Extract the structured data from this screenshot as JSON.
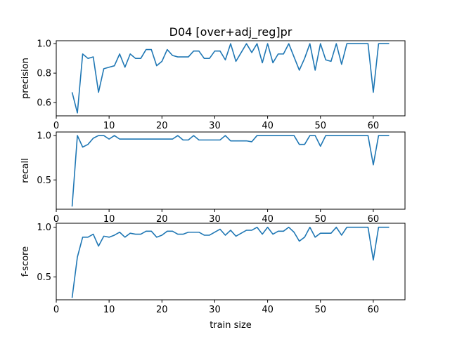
{
  "figure": {
    "title": "D04 [over+adj_reg]pr",
    "xlabel": "train size",
    "line_color": "#1f77b4"
  },
  "chart_data": [
    {
      "type": "line",
      "ylabel": "precision",
      "xlim": [
        0,
        66
      ],
      "ylim": [
        0.51,
        1.02
      ],
      "xticks": [
        0,
        10,
        20,
        30,
        40,
        50,
        60
      ],
      "yticks": [
        0.6,
        0.8,
        1.0
      ],
      "ytick_labels": [
        "0.6",
        "0.8",
        "1.0"
      ],
      "x": [
        3,
        4,
        5,
        6,
        7,
        8,
        9,
        10,
        11,
        12,
        13,
        14,
        15,
        16,
        17,
        18,
        19,
        20,
        21,
        22,
        23,
        24,
        25,
        26,
        27,
        28,
        29,
        30,
        31,
        32,
        33,
        34,
        35,
        36,
        37,
        38,
        39,
        40,
        41,
        42,
        43,
        44,
        45,
        46,
        47,
        48,
        49,
        50,
        51,
        52,
        53,
        54,
        55,
        56,
        57,
        58,
        59,
        60,
        61,
        62,
        63
      ],
      "y": [
        0.67,
        0.53,
        0.93,
        0.9,
        0.91,
        0.67,
        0.83,
        0.84,
        0.85,
        0.93,
        0.84,
        0.93,
        0.9,
        0.9,
        0.96,
        0.96,
        0.85,
        0.88,
        0.96,
        0.92,
        0.91,
        0.91,
        0.91,
        0.95,
        0.95,
        0.9,
        0.9,
        0.95,
        0.95,
        0.89,
        1.0,
        0.88,
        0.94,
        1.0,
        0.94,
        1.0,
        0.87,
        1.0,
        0.87,
        0.93,
        0.93,
        1.0,
        0.91,
        0.82,
        0.9,
        1.0,
        0.82,
        1.0,
        0.89,
        0.88,
        1.0,
        0.86,
        1.0,
        1.0,
        1.0,
        1.0,
        1.0,
        0.67,
        1.0,
        1.0,
        1.0
      ]
    },
    {
      "type": "line",
      "ylabel": "recall",
      "xlim": [
        0,
        66
      ],
      "ylim": [
        0.17,
        1.04
      ],
      "xticks": [
        0,
        10,
        20,
        30,
        40,
        50,
        60
      ],
      "yticks": [
        0.5,
        1.0
      ],
      "ytick_labels": [
        "0.5",
        "1.0"
      ],
      "x": [
        3,
        4,
        5,
        6,
        7,
        8,
        9,
        10,
        11,
        12,
        13,
        14,
        15,
        16,
        17,
        18,
        19,
        20,
        21,
        22,
        23,
        24,
        25,
        26,
        27,
        28,
        29,
        30,
        31,
        32,
        33,
        34,
        35,
        36,
        37,
        38,
        39,
        40,
        41,
        42,
        43,
        44,
        45,
        46,
        47,
        48,
        49,
        50,
        51,
        52,
        53,
        54,
        55,
        56,
        57,
        58,
        59,
        60,
        61,
        62,
        63
      ],
      "y": [
        0.2,
        1.0,
        0.87,
        0.9,
        0.97,
        1.0,
        1.0,
        0.96,
        1.0,
        0.96,
        0.96,
        0.96,
        0.96,
        0.96,
        0.96,
        0.96,
        0.96,
        0.96,
        0.96,
        0.96,
        1.0,
        0.95,
        0.95,
        1.0,
        0.95,
        0.95,
        0.95,
        0.95,
        0.95,
        1.0,
        0.94,
        0.94,
        0.94,
        0.94,
        0.93,
        1.0,
        1.0,
        1.0,
        1.0,
        1.0,
        1.0,
        1.0,
        1.0,
        0.9,
        0.9,
        1.0,
        1.0,
        0.88,
        1.0,
        1.0,
        1.0,
        1.0,
        1.0,
        1.0,
        1.0,
        1.0,
        1.0,
        0.67,
        1.0,
        1.0,
        1.0
      ]
    },
    {
      "type": "line",
      "ylabel": "f-score",
      "xlim": [
        0,
        66
      ],
      "ylim": [
        0.27,
        1.04
      ],
      "xticks": [
        0,
        10,
        20,
        30,
        40,
        50,
        60
      ],
      "xtick_labels": [
        "0",
        "10",
        "20",
        "30",
        "40",
        "50",
        "60"
      ],
      "yticks": [
        0.5,
        1.0
      ],
      "ytick_labels": [
        "0.5",
        "1.0"
      ],
      "x": [
        3,
        4,
        5,
        6,
        7,
        8,
        9,
        10,
        11,
        12,
        13,
        14,
        15,
        16,
        17,
        18,
        19,
        20,
        21,
        22,
        23,
        24,
        25,
        26,
        27,
        28,
        29,
        30,
        31,
        32,
        33,
        34,
        35,
        36,
        37,
        38,
        39,
        40,
        41,
        42,
        43,
        44,
        45,
        46,
        47,
        48,
        49,
        50,
        51,
        52,
        53,
        54,
        55,
        56,
        57,
        58,
        59,
        60,
        61,
        62,
        63
      ],
      "y": [
        0.29,
        0.7,
        0.9,
        0.9,
        0.93,
        0.81,
        0.91,
        0.9,
        0.92,
        0.95,
        0.9,
        0.94,
        0.93,
        0.93,
        0.96,
        0.96,
        0.9,
        0.92,
        0.96,
        0.96,
        0.93,
        0.93,
        0.95,
        0.95,
        0.95,
        0.92,
        0.92,
        0.95,
        0.98,
        0.92,
        0.97,
        0.91,
        0.94,
        0.97,
        0.97,
        1.0,
        0.93,
        1.0,
        0.93,
        0.96,
        0.96,
        1.0,
        0.95,
        0.86,
        0.9,
        1.0,
        0.9,
        0.94,
        0.94,
        0.94,
        1.0,
        0.92,
        1.0,
        1.0,
        1.0,
        1.0,
        1.0,
        0.67,
        1.0,
        1.0,
        1.0
      ]
    }
  ]
}
